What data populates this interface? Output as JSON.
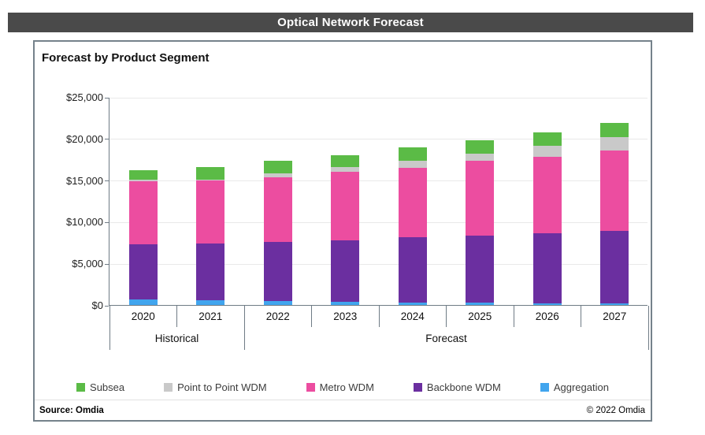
{
  "window": {
    "title": "Optical Network Forecast"
  },
  "panel": {
    "title": "Forecast by Product Segment",
    "footer": {
      "source": "Source: Omdia",
      "copyright": "© 2022 Omdia"
    }
  },
  "colors": {
    "title_bar_bg": "#4a4a4a",
    "panel_border": "#75828b",
    "axis_line": "#6f7b85",
    "gridline": "#e9e9e9",
    "subsea": "#5bbb46",
    "point_to_point_wdm": "#c9c9c9",
    "metro_wdm": "#ec4da0",
    "backbone_wdm": "#6b2fa0",
    "aggregation": "#41a5ee"
  },
  "chart_data": {
    "type": "bar",
    "stacked": true,
    "title": "Forecast by Product Segment",
    "xlabel": "",
    "ylabel": "",
    "ylim": [
      0,
      25000
    ],
    "y_tick_step": 5000,
    "y_tick_labels": [
      "$0",
      "$5,000",
      "$10,000",
      "$15,000",
      "$20,000",
      "$25,000"
    ],
    "grid": true,
    "legend_position": "bottom",
    "categories": [
      "2020",
      "2021",
      "2022",
      "2023",
      "2024",
      "2025",
      "2026",
      "2027"
    ],
    "category_groups": [
      {
        "label": "Historical",
        "start": 0,
        "end": 1
      },
      {
        "label": "Forecast",
        "start": 2,
        "end": 7
      }
    ],
    "series": [
      {
        "name": "Aggregation",
        "color": "#41a5ee",
        "values": [
          630,
          600,
          470,
          380,
          310,
          255,
          215,
          160
        ]
      },
      {
        "name": "Backbone WDM",
        "color": "#6b2fa0",
        "values": [
          6640,
          6760,
          7080,
          7360,
          7800,
          8110,
          8400,
          8740
        ]
      },
      {
        "name": "Metro WDM",
        "color": "#ec4da0",
        "values": [
          7630,
          7590,
          7830,
          8230,
          8400,
          8965,
          9185,
          9620
        ]
      },
      {
        "name": "Point to Point WDM",
        "color": "#c9c9c9",
        "values": [
          150,
          150,
          440,
          570,
          820,
          810,
          1320,
          1640
        ]
      },
      {
        "name": "Subsea",
        "color": "#5bbb46",
        "values": [
          1180,
          1440,
          1510,
          1480,
          1570,
          1640,
          1660,
          1750
        ]
      }
    ],
    "totals": [
      16230,
      16540,
      17330,
      18020,
      18900,
      19780,
      20780,
      21910
    ],
    "legend_order_top_first": [
      "Subsea",
      "Point to Point WDM",
      "Metro WDM",
      "Backbone WDM",
      "Aggregation"
    ]
  }
}
